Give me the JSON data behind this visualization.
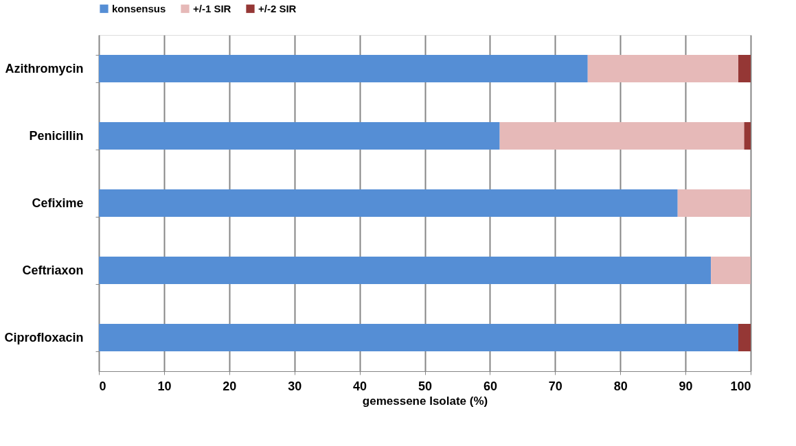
{
  "chart_data": {
    "type": "bar",
    "orientation": "horizontal",
    "stacked": true,
    "categories": [
      "Azithromycin",
      "Penicillin",
      "Cefixime",
      "Ceftriaxon",
      "Ciprofloxacin"
    ],
    "series": [
      {
        "name": "konsensus",
        "color": "#558ed5",
        "values": [
          75.0,
          61.5,
          88.8,
          93.9,
          98.1
        ]
      },
      {
        "name": "+/-1 SIR",
        "color": "#e6b9b8",
        "values": [
          23.1,
          37.5,
          11.2,
          6.1,
          0
        ]
      },
      {
        "name": "+/-2 SIR",
        "color": "#953735",
        "values": [
          1.9,
          1.0,
          0,
          0,
          1.9
        ]
      }
    ],
    "xlabel": "gemessene Isolate (%)",
    "xlim": [
      0,
      100
    ],
    "xticks": [
      0,
      10,
      20,
      30,
      40,
      50,
      60,
      70,
      80,
      90,
      100
    ],
    "grid": "x",
    "legend": "top"
  }
}
